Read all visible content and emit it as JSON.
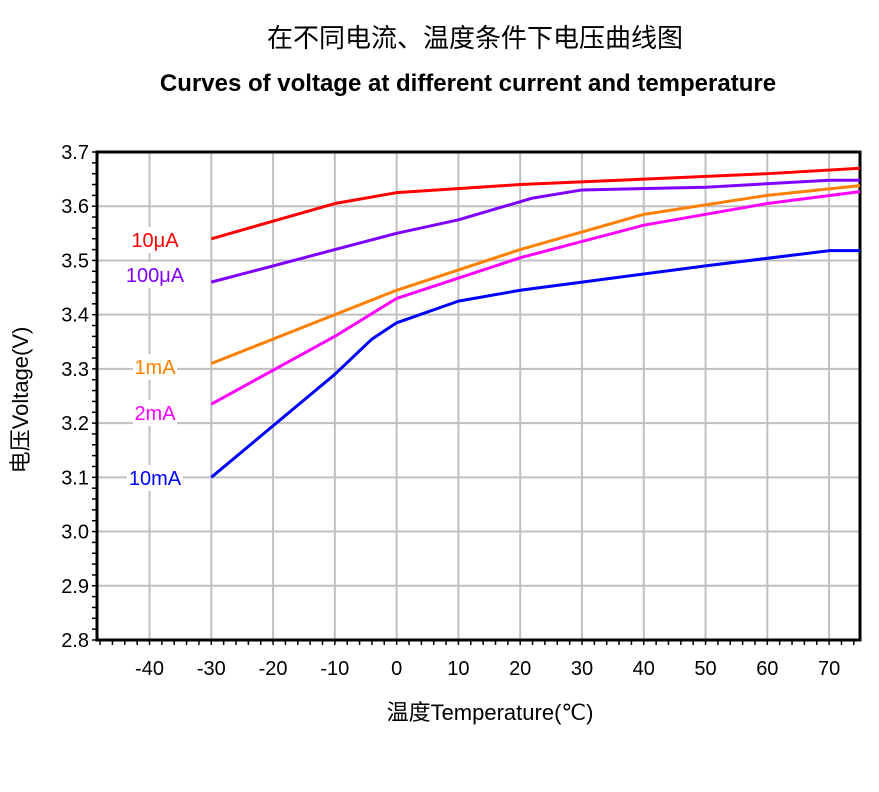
{
  "chart_data": {
    "type": "line",
    "title": "在不同电流、温度条件下电压曲线图",
    "subtitle": "Curves of voltage at different current and temperature",
    "xlabel": "温度Temperature(℃)",
    "ylabel": "电压Voltage(V)",
    "xlim": [
      -48.5,
      75
    ],
    "ylim": [
      2.8,
      3.7
    ],
    "xticks": [
      "-40",
      "-30",
      "-20",
      "-10",
      "0",
      "10",
      "20",
      "30",
      "40",
      "50",
      "60",
      "70"
    ],
    "yticks": [
      "2.8",
      "2.9",
      "3.0",
      "3.1",
      "3.2",
      "3.3",
      "3.4",
      "3.5",
      "3.6",
      "3.7"
    ],
    "grid": true,
    "series": [
      {
        "name": "10μA",
        "color": "#ff0000",
        "x": [
          -30,
          -10,
          0,
          20,
          40,
          60,
          75
        ],
        "y": [
          3.54,
          3.605,
          3.625,
          3.64,
          3.65,
          3.66,
          3.67
        ]
      },
      {
        "name": "100μA",
        "color": "#8000ff",
        "x": [
          -30,
          -10,
          0,
          10,
          22,
          30,
          50,
          70,
          75
        ],
        "y": [
          3.46,
          3.52,
          3.55,
          3.575,
          3.615,
          3.63,
          3.635,
          3.648,
          3.648
        ]
      },
      {
        "name": "1mA",
        "color": "#ff8000",
        "x": [
          -30,
          0,
          20,
          40,
          60,
          75
        ],
        "y": [
          3.31,
          3.445,
          3.52,
          3.585,
          3.62,
          3.638
        ]
      },
      {
        "name": "2mA",
        "color": "#ff00ff",
        "x": [
          -30,
          -10,
          0,
          20,
          40,
          60,
          75
        ],
        "y": [
          3.235,
          3.36,
          3.43,
          3.505,
          3.565,
          3.605,
          3.627
        ]
      },
      {
        "name": "10mA",
        "color": "#0000ff",
        "x": [
          -30,
          -10,
          -4,
          0,
          10,
          20,
          30,
          50,
          70,
          75
        ],
        "y": [
          3.1,
          3.29,
          3.355,
          3.385,
          3.425,
          3.445,
          3.46,
          3.49,
          3.518,
          3.518
        ]
      }
    ]
  }
}
